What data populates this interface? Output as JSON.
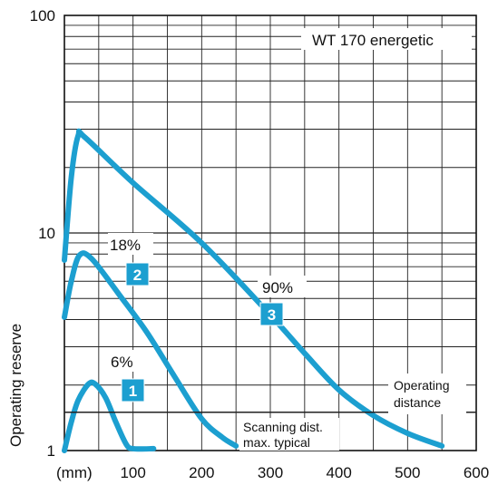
{
  "chart_data": {
    "type": "line",
    "title": "WT 170 energetic",
    "xlabel": "(mm)",
    "ylabel": "Operating reserve",
    "y_scale": "log",
    "xlim": [
      0,
      600
    ],
    "ylim": [
      1,
      100
    ],
    "x_ticks": [
      100,
      200,
      300,
      400,
      500,
      600
    ],
    "y_ticks": [
      1,
      10,
      100
    ],
    "grid": true,
    "accent_color": "#1c9fd0",
    "series": [
      {
        "name": "6%",
        "badge": "1",
        "points": [
          [
            0,
            1.0
          ],
          [
            10,
            1.35
          ],
          [
            20,
            1.7
          ],
          [
            35,
            2.02
          ],
          [
            45,
            2.02
          ],
          [
            60,
            1.75
          ],
          [
            75,
            1.35
          ],
          [
            90,
            1.07
          ],
          [
            100,
            1.02
          ],
          [
            130,
            1.02
          ]
        ]
      },
      {
        "name": "18%",
        "badge": "2",
        "points": [
          [
            0,
            4.1
          ],
          [
            10,
            6.0
          ],
          [
            22,
            7.9
          ],
          [
            40,
            7.6
          ],
          [
            80,
            5.2
          ],
          [
            120,
            3.5
          ],
          [
            160,
            2.2
          ],
          [
            200,
            1.4
          ],
          [
            230,
            1.15
          ],
          [
            250,
            1.05
          ]
        ]
      },
      {
        "name": "90%",
        "badge": "3",
        "points": [
          [
            0,
            7.5
          ],
          [
            10,
            18.0
          ],
          [
            20,
            28.0
          ],
          [
            30,
            27.5
          ],
          [
            100,
            17.0
          ],
          [
            200,
            9.0
          ],
          [
            300,
            4.2
          ],
          [
            350,
            2.8
          ],
          [
            400,
            1.9
          ],
          [
            450,
            1.45
          ],
          [
            500,
            1.2
          ],
          [
            550,
            1.05
          ]
        ]
      }
    ],
    "reference_line": {
      "y": 1.5,
      "label_above": "Operating distance",
      "label_below": "Scanning dist. max. typical"
    }
  },
  "labels": {
    "title": "WT 170 energetic",
    "y_axis": "Operating reserve",
    "x_unit": "(mm)",
    "y_ticks": [
      "1",
      "10",
      "100"
    ],
    "x_ticks": [
      "100",
      "200",
      "300",
      "400",
      "500",
      "600"
    ],
    "operating_distance_line1": "Operating",
    "operating_distance_line2": "distance",
    "scanning_line1": "Scanning dist.",
    "scanning_line2": "max. typical"
  }
}
